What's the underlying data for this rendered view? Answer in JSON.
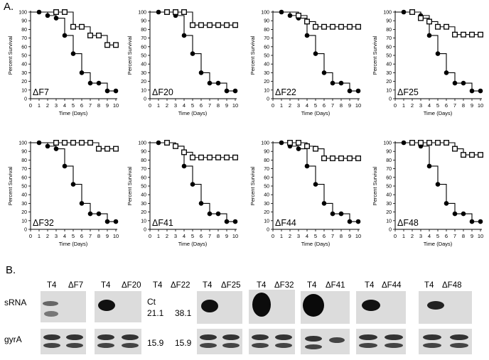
{
  "panel_a_label": "A.",
  "panel_b_label": "B.",
  "chart_common": {
    "xlabel": "Time (Days)",
    "ylabel": "Percent Survival",
    "x_ticks": [
      0,
      1,
      2,
      3,
      4,
      5,
      6,
      7,
      8,
      9,
      10
    ],
    "y_ticks": [
      0,
      10,
      20,
      30,
      40,
      50,
      60,
      70,
      80,
      90,
      100
    ]
  },
  "chart_data": [
    {
      "type": "line",
      "annotation": "ΔF7",
      "xlabel": "Time (Days)",
      "ylabel": "Percent Survival",
      "xlim": [
        0,
        10
      ],
      "ylim": [
        0,
        100
      ],
      "series": [
        {
          "marker": "filled-circle",
          "x": [
            1,
            2,
            3,
            4,
            5,
            6,
            7,
            8,
            9,
            10
          ],
          "values": [
            100,
            96,
            93,
            73,
            52,
            30,
            18,
            18,
            9,
            9
          ]
        },
        {
          "marker": "open-square",
          "x": [
            3,
            4,
            5,
            6,
            7,
            8,
            9,
            10
          ],
          "values": [
            100,
            100,
            83,
            83,
            73,
            73,
            62,
            62
          ]
        }
      ]
    },
    {
      "type": "line",
      "annotation": "ΔF20",
      "xlabel": "Time (Days)",
      "ylabel": "Percent Survival",
      "xlim": [
        0,
        10
      ],
      "ylim": [
        0,
        100
      ],
      "series": [
        {
          "marker": "filled-circle",
          "x": [
            1,
            2,
            3,
            4,
            5,
            6,
            7,
            8,
            9,
            10
          ],
          "values": [
            100,
            100,
            96,
            73,
            52,
            30,
            18,
            18,
            9,
            9
          ]
        },
        {
          "marker": "open-square",
          "x": [
            2,
            3,
            4,
            5,
            6,
            7,
            8,
            9,
            10
          ],
          "values": [
            100,
            100,
            100,
            85,
            85,
            85,
            85,
            85,
            85
          ]
        }
      ]
    },
    {
      "type": "line",
      "annotation": "ΔF22",
      "xlabel": "Time (Days)",
      "ylabel": "Percent Survival",
      "xlim": [
        0,
        10
      ],
      "ylim": [
        0,
        100
      ],
      "series": [
        {
          "marker": "filled-circle",
          "x": [
            1,
            2,
            3,
            4,
            5,
            6,
            7,
            8,
            9,
            10
          ],
          "values": [
            100,
            96,
            93,
            73,
            52,
            30,
            18,
            18,
            9,
            9
          ]
        },
        {
          "marker": "open-square",
          "x": [
            3,
            4,
            5,
            6,
            7,
            8,
            9,
            10
          ],
          "values": [
            96,
            89,
            83,
            83,
            83,
            83,
            83,
            83
          ]
        }
      ]
    },
    {
      "type": "line",
      "annotation": "ΔF25",
      "xlabel": "Time (Days)",
      "ylabel": "Percent Survival",
      "xlim": [
        0,
        10
      ],
      "ylim": [
        0,
        100
      ],
      "series": [
        {
          "marker": "filled-circle",
          "x": [
            1,
            2,
            3,
            4,
            5,
            6,
            7,
            8,
            9,
            10
          ],
          "values": [
            100,
            100,
            96,
            73,
            52,
            30,
            18,
            18,
            9,
            9
          ]
        },
        {
          "marker": "open-square",
          "x": [
            2,
            3,
            4,
            5,
            6,
            7,
            8,
            9,
            10
          ],
          "values": [
            100,
            93,
            89,
            83,
            83,
            74,
            74,
            74,
            74
          ]
        }
      ]
    },
    {
      "type": "line",
      "annotation": "ΔF32",
      "xlabel": "Time (Days)",
      "ylabel": "Percent Survival",
      "xlim": [
        0,
        10
      ],
      "ylim": [
        0,
        100
      ],
      "series": [
        {
          "marker": "filled-circle",
          "x": [
            1,
            2,
            3,
            4,
            5,
            6,
            7,
            8,
            9,
            10
          ],
          "values": [
            100,
            96,
            93,
            73,
            52,
            30,
            18,
            18,
            9,
            9
          ]
        },
        {
          "marker": "open-square",
          "x": [
            3,
            4,
            5,
            6,
            7,
            8,
            9,
            10
          ],
          "values": [
            100,
            100,
            100,
            100,
            100,
            93,
            93,
            93
          ]
        }
      ]
    },
    {
      "type": "line",
      "annotation": "ΔF41",
      "xlabel": "Time (Days)",
      "ylabel": "Percent Survival",
      "xlim": [
        0,
        10
      ],
      "ylim": [
        0,
        100
      ],
      "series": [
        {
          "marker": "filled-circle",
          "x": [
            1,
            2,
            3,
            4,
            5,
            6,
            7,
            8,
            9,
            10
          ],
          "values": [
            100,
            100,
            96,
            73,
            52,
            30,
            18,
            18,
            9,
            9
          ]
        },
        {
          "marker": "open-square",
          "x": [
            2,
            3,
            4,
            5,
            6,
            7,
            8,
            9,
            10
          ],
          "values": [
            100,
            96,
            89,
            83,
            83,
            83,
            83,
            83,
            83
          ]
        }
      ]
    },
    {
      "type": "line",
      "annotation": "ΔF44",
      "xlabel": "Time (Days)",
      "ylabel": "Percent Survival",
      "xlim": [
        0,
        10
      ],
      "ylim": [
        0,
        100
      ],
      "series": [
        {
          "marker": "filled-circle",
          "x": [
            1,
            2,
            3,
            4,
            5,
            6,
            7,
            8,
            9,
            10
          ],
          "values": [
            100,
            96,
            93,
            73,
            52,
            30,
            18,
            18,
            9,
            9
          ]
        },
        {
          "marker": "open-square",
          "x": [
            2,
            3,
            4,
            5,
            6,
            7,
            8,
            9,
            10
          ],
          "values": [
            100,
            100,
            96,
            93,
            82,
            82,
            82,
            82,
            82
          ]
        }
      ]
    },
    {
      "type": "line",
      "annotation": "ΔF48",
      "xlabel": "Time (Days)",
      "ylabel": "Percent Survival",
      "xlim": [
        0,
        10
      ],
      "ylim": [
        0,
        100
      ],
      "series": [
        {
          "marker": "filled-circle",
          "x": [
            1,
            2,
            3,
            4,
            5,
            6,
            7,
            8,
            9,
            10
          ],
          "values": [
            100,
            100,
            96,
            73,
            52,
            30,
            18,
            18,
            9,
            9
          ]
        },
        {
          "marker": "open-square",
          "x": [
            2,
            3,
            4,
            5,
            6,
            7,
            8,
            9,
            10
          ],
          "values": [
            100,
            100,
            100,
            100,
            100,
            93,
            86,
            86,
            86
          ]
        }
      ]
    }
  ],
  "blot": {
    "row_labels": {
      "srna": "sRNA",
      "gyra": "gyrA"
    },
    "lanes": [
      {
        "t4": "T4",
        "mut": "ΔF7"
      },
      {
        "t4": "T4",
        "mut": "ΔF20"
      },
      {
        "t4": "T4",
        "mut": "ΔF22"
      },
      {
        "t4": "T4",
        "mut": "ΔF25"
      },
      {
        "t4": "T4",
        "mut": "ΔF32"
      },
      {
        "t4": "T4",
        "mut": "ΔF41"
      },
      {
        "t4": "T4",
        "mut": "ΔF44"
      },
      {
        "t4": "T4",
        "mut": "ΔF48"
      }
    ],
    "ct": {
      "label": "Ct",
      "srna_t4": "21.1",
      "srna_mut": "38.1",
      "gyra_t4": "15.9",
      "gyra_mut": "15.9"
    }
  }
}
